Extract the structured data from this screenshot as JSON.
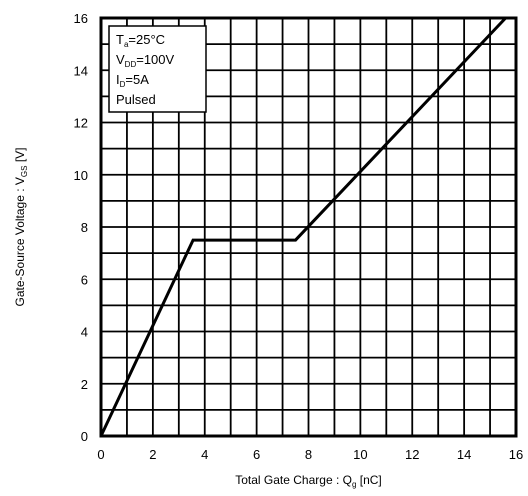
{
  "chart_data": {
    "type": "line",
    "xlabel": {
      "main": "Total Gate Charge : Q",
      "sub": "g",
      "unit": "  [nC]"
    },
    "ylabel": {
      "main": "Gate-Source Voltage : V",
      "sub": "GS",
      "unit": " [V]"
    },
    "xlim": [
      0,
      16
    ],
    "ylim": [
      0,
      16
    ],
    "x_ticks": [
      "0",
      "2",
      "4",
      "6",
      "8",
      "10",
      "12",
      "14",
      "16"
    ],
    "y_ticks": [
      "0",
      "2",
      "4",
      "6",
      "8",
      "10",
      "12",
      "14",
      "16"
    ],
    "grid": true,
    "series": [
      {
        "x": [
          0,
          3.55,
          7.5,
          15.6
        ],
        "y": [
          0,
          7.5,
          7.5,
          16
        ]
      }
    ],
    "legend": {
      "placement": "top-left",
      "lines": [
        {
          "main": "T",
          "sub": "a",
          "rest": "=25°C"
        },
        {
          "main": "V",
          "sub": "DD",
          "rest": "=100V"
        },
        {
          "main": "I",
          "sub": "D",
          "rest": "=5A"
        },
        {
          "main": "Pulsed",
          "sub": "",
          "rest": ""
        }
      ]
    }
  }
}
